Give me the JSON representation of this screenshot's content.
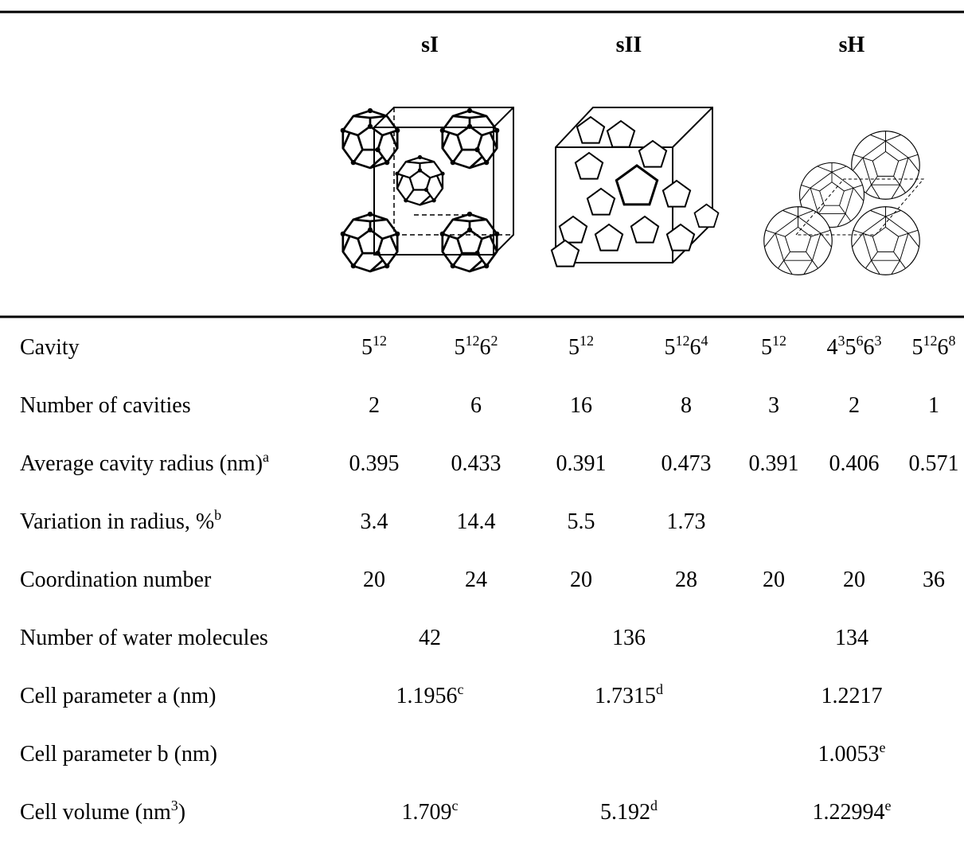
{
  "header": [
    "sI",
    "sII",
    "sH"
  ],
  "table": {
    "rows": [
      {
        "label": [
          {
            "t": "Cavity"
          }
        ],
        "cells": [
          [
            {
              "t": "5",
              "sup": "12"
            }
          ],
          [
            {
              "t": "5",
              "sup": "12"
            },
            {
              "t": "6",
              "sup": "2"
            }
          ],
          [
            {
              "t": "5",
              "sup": "12"
            }
          ],
          [
            {
              "t": "5",
              "sup": "12"
            },
            {
              "t": "6",
              "sup": "4"
            }
          ],
          [
            {
              "t": "5",
              "sup": "12"
            }
          ],
          [
            {
              "t": "4",
              "sup": "3"
            },
            {
              "t": "5",
              "sup": "6"
            },
            {
              "t": "6",
              "sup": "3"
            }
          ],
          [
            {
              "t": "5",
              "sup": "12"
            },
            {
              "t": "6",
              "sup": "8"
            }
          ]
        ]
      },
      {
        "label": [
          {
            "t": "Number of cavities"
          }
        ],
        "cells": [
          [
            {
              "t": "2"
            }
          ],
          [
            {
              "t": "6"
            }
          ],
          [
            {
              "t": "16"
            }
          ],
          [
            {
              "t": "8"
            }
          ],
          [
            {
              "t": "3"
            }
          ],
          [
            {
              "t": "2"
            }
          ],
          [
            {
              "t": "1"
            }
          ]
        ]
      },
      {
        "label": [
          {
            "t": "Average cavity radius (nm)",
            "sup": "a"
          }
        ],
        "cells": [
          [
            {
              "t": "0.395"
            }
          ],
          [
            {
              "t": "0.433"
            }
          ],
          [
            {
              "t": "0.391"
            }
          ],
          [
            {
              "t": "0.473"
            }
          ],
          [
            {
              "t": "0.391"
            }
          ],
          [
            {
              "t": "0.406"
            }
          ],
          [
            {
              "t": "0.571"
            }
          ]
        ]
      },
      {
        "label": [
          {
            "t": "Variation in radius, %",
            "sup": "b"
          }
        ],
        "cells": [
          [
            {
              "t": "3.4"
            }
          ],
          [
            {
              "t": "14.4"
            }
          ],
          [
            {
              "t": "5.5"
            }
          ],
          [
            {
              "t": "1.73"
            }
          ],
          null,
          null,
          null
        ]
      },
      {
        "label": [
          {
            "t": "Coordination number"
          }
        ],
        "cells": [
          [
            {
              "t": "20"
            }
          ],
          [
            {
              "t": "24"
            }
          ],
          [
            {
              "t": "20"
            }
          ],
          [
            {
              "t": "28"
            }
          ],
          [
            {
              "t": "20"
            }
          ],
          [
            {
              "t": "20"
            }
          ],
          [
            {
              "t": "36"
            }
          ]
        ]
      },
      {
        "label": [
          {
            "t": "Number of water molecules"
          }
        ],
        "cells": [
          [
            {
              "t": "42"
            }
          ],
          [
            {
              "t": "136"
            }
          ],
          [
            {
              "t": "134"
            }
          ]
        ]
      },
      {
        "label": [
          {
            "t": "Cell parameter a (nm)"
          }
        ],
        "cells": [
          [
            {
              "t": "1.1956",
              "sup": "c"
            }
          ],
          [
            {
              "t": "1.7315",
              "sup": "d"
            }
          ],
          [
            {
              "t": "1.2217"
            }
          ]
        ]
      },
      {
        "label": [
          {
            "t": "Cell parameter b (nm)"
          }
        ],
        "cells": [
          null,
          null,
          [
            {
              "t": "1.0053",
              "sup": "e"
            }
          ]
        ]
      },
      {
        "label": [
          {
            "t": "Cell volume (nm",
            "sup": "3"
          },
          {
            "t": ")"
          }
        ],
        "cells": [
          [
            {
              "t": "1.709",
              "sup": "c"
            }
          ],
          [
            {
              "t": "5.192",
              "sup": "d"
            }
          ],
          [
            {
              "t": "1.22994",
              "sup": "e"
            }
          ]
        ]
      }
    ]
  }
}
